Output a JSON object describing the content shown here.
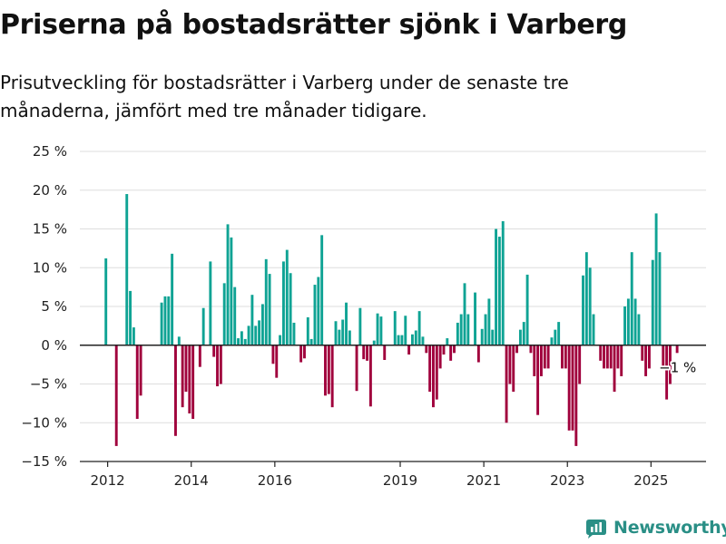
{
  "title": "Priserna på bostadsrätter sjönk i Varberg",
  "subtitle": "Prisutveckling för bostadsrätter i Varberg under de senaste tre månaderna, jämfört med tre månader tidigare.",
  "brand": "Newsworthy",
  "colors": {
    "positive": "#0fa394",
    "negative": "#a0003c",
    "grid": "#dddddd",
    "brand": "#2a8f86"
  },
  "chart_data": {
    "type": "bar",
    "title": "Priserna på bostadsrätter sjönk i Varberg",
    "xlabel": "",
    "ylabel": "",
    "x_start": "2011-12",
    "frequency": "monthly",
    "ylim": [
      -15,
      25
    ],
    "yticks": [
      -15,
      -10,
      -5,
      0,
      5,
      10,
      15,
      20,
      25
    ],
    "ytick_labels": [
      "−15 %",
      "−10 %",
      "−5 %",
      "0 %",
      "5 %",
      "10 %",
      "15 %",
      "20 %",
      "25 %"
    ],
    "xticks": [
      {
        "label": "2012",
        "date": "2012-01"
      },
      {
        "label": "2014",
        "date": "2014-01"
      },
      {
        "label": "2016",
        "date": "2016-01"
      },
      {
        "label": "2019",
        "date": "2019-01"
      },
      {
        "label": "2021",
        "date": "2021-01"
      },
      {
        "label": "2023",
        "date": "2023-01"
      },
      {
        "label": "2025",
        "date": "2025-01"
      }
    ],
    "grid": true,
    "last_label": "−1 %",
    "values": [
      11.2,
      null,
      null,
      -13.0,
      null,
      null,
      19.5,
      7.0,
      2.3,
      -9.5,
      -6.5,
      null,
      null,
      null,
      null,
      null,
      5.5,
      6.3,
      6.3,
      11.8,
      -11.7,
      1.1,
      -8.0,
      -6.0,
      -8.8,
      -9.5,
      null,
      -2.8,
      4.8,
      null,
      10.8,
      -1.5,
      -5.3,
      -5.0,
      8.0,
      15.6,
      13.9,
      7.5,
      0.9,
      1.8,
      0.8,
      2.5,
      6.5,
      2.5,
      3.2,
      5.3,
      11.1,
      9.2,
      -2.4,
      -4.2,
      1.3,
      10.8,
      12.3,
      9.3,
      2.9,
      null,
      -2.2,
      -1.7,
      3.6,
      0.8,
      7.8,
      8.8,
      14.2,
      -6.5,
      -6.3,
      -8.0,
      3.1,
      2.0,
      3.3,
      5.5,
      1.9,
      null,
      -5.9,
      4.8,
      -1.8,
      -2.0,
      -7.9,
      0.6,
      4.1,
      3.7,
      -1.9,
      null,
      null,
      4.4,
      1.3,
      1.3,
      3.8,
      -1.2,
      1.4,
      1.9,
      4.4,
      1.1,
      -1.0,
      -6.0,
      -8.0,
      -7.0,
      -3.0,
      -1.2,
      0.9,
      -2.0,
      -1.0,
      2.9,
      4.0,
      8.0,
      4.0,
      null,
      6.8,
      -2.2,
      2.1,
      4.0,
      6.0,
      2.0,
      15.0,
      14.0,
      16.0,
      -10.0,
      -5.0,
      -6.0,
      -1.0,
      2.0,
      3.0,
      9.1,
      -1.0,
      -4.0,
      -9.0,
      -4.0,
      -3.0,
      -3.0,
      1.0,
      2.0,
      3.0,
      -3.0,
      -3.0,
      -11.0,
      -11.0,
      -13.0,
      -5.0,
      9.0,
      12.0,
      10.0,
      4.0,
      null,
      -2.0,
      -3.0,
      -3.0,
      -3.0,
      -6.0,
      -3.0,
      -4.0,
      5.0,
      6.0,
      12.0,
      6.0,
      4.0,
      -2.0,
      -4.0,
      -3.0,
      11.0,
      17.0,
      12.0,
      -3.0,
      -7.0,
      -5.0,
      null,
      -1.0
    ]
  }
}
